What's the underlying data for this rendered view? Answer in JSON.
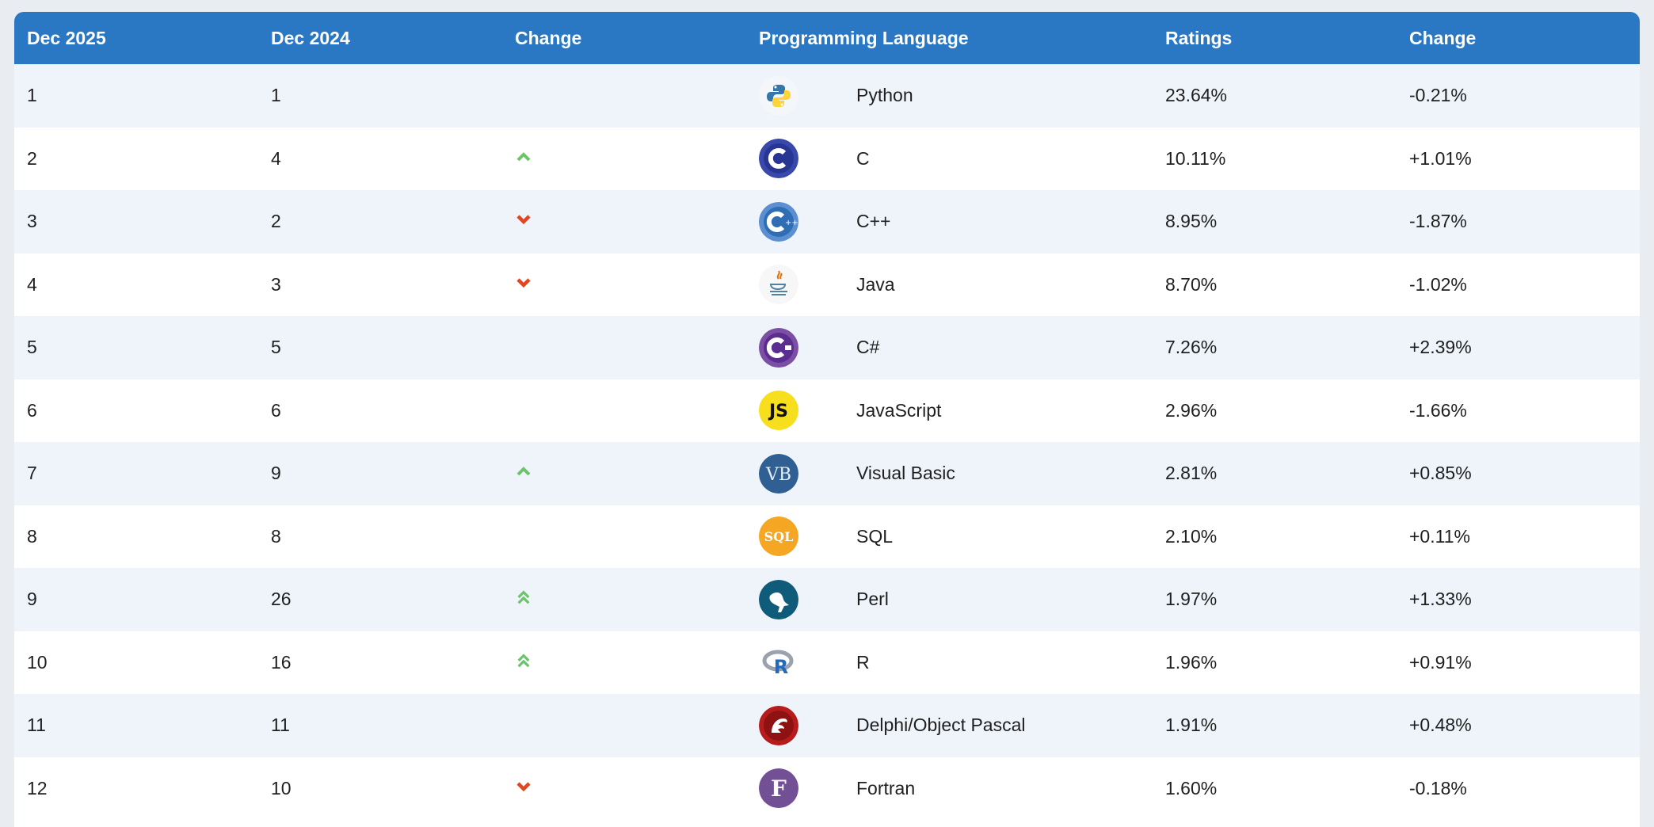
{
  "columns": {
    "year_now": "Dec 2025",
    "year_prev": "Dec 2024",
    "change": "Change",
    "language": "Programming Language",
    "ratings": "Ratings",
    "change_pct": "Change"
  },
  "colors": {
    "header_bg": "#2a77c3",
    "up": "#6cc46a",
    "down": "#e0461f"
  },
  "rows": [
    {
      "now": "1",
      "prev": "1",
      "trend": "none",
      "icon": "python-logo-icon",
      "language": "Python",
      "rating": "23.64%",
      "change": "-0.21%"
    },
    {
      "now": "2",
      "prev": "4",
      "trend": "up",
      "icon": "c-logo-icon",
      "language": "C",
      "rating": "10.11%",
      "change": "+1.01%"
    },
    {
      "now": "3",
      "prev": "2",
      "trend": "down",
      "icon": "cpp-logo-icon",
      "language": "C++",
      "rating": "8.95%",
      "change": "-1.87%"
    },
    {
      "now": "4",
      "prev": "3",
      "trend": "down",
      "icon": "java-logo-icon",
      "language": "Java",
      "rating": "8.70%",
      "change": "-1.02%"
    },
    {
      "now": "5",
      "prev": "5",
      "trend": "none",
      "icon": "csharp-logo-icon",
      "language": "C#",
      "rating": "7.26%",
      "change": "+2.39%"
    },
    {
      "now": "6",
      "prev": "6",
      "trend": "none",
      "icon": "javascript-logo-icon",
      "language": "JavaScript",
      "rating": "2.96%",
      "change": "-1.66%"
    },
    {
      "now": "7",
      "prev": "9",
      "trend": "up",
      "icon": "visual-basic-logo-icon",
      "language": "Visual Basic",
      "rating": "2.81%",
      "change": "+0.85%"
    },
    {
      "now": "8",
      "prev": "8",
      "trend": "none",
      "icon": "sql-logo-icon",
      "language": "SQL",
      "rating": "2.10%",
      "change": "+0.11%"
    },
    {
      "now": "9",
      "prev": "26",
      "trend": "double-up",
      "icon": "perl-logo-icon",
      "language": "Perl",
      "rating": "1.97%",
      "change": "+1.33%"
    },
    {
      "now": "10",
      "prev": "16",
      "trend": "double-up",
      "icon": "r-logo-icon",
      "language": "R",
      "rating": "1.96%",
      "change": "+0.91%"
    },
    {
      "now": "11",
      "prev": "11",
      "trend": "none",
      "icon": "delphi-logo-icon",
      "language": "Delphi/Object Pascal",
      "rating": "1.91%",
      "change": "+0.48%"
    },
    {
      "now": "12",
      "prev": "10",
      "trend": "down",
      "icon": "fortran-logo-icon",
      "language": "Fortran",
      "rating": "1.60%",
      "change": "-0.18%"
    }
  ]
}
